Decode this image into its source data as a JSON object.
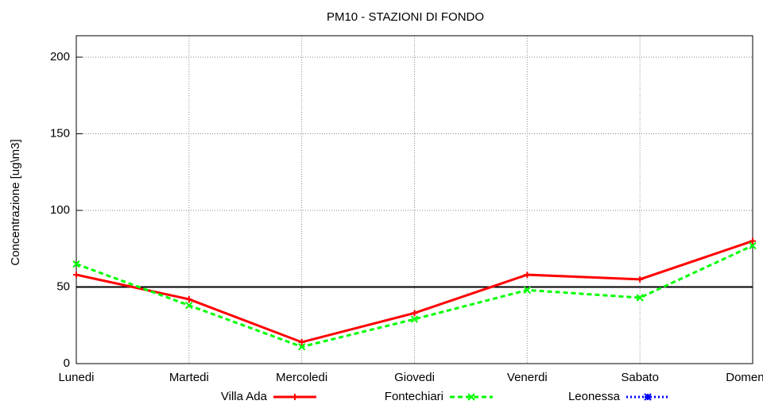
{
  "chart_data": {
    "type": "line",
    "title": "PM10 - STAZIONI DI FONDO",
    "y_label": "Concentrazione [ug\\m3]",
    "categories": [
      "Lunedi",
      "Martedi",
      "Mercoledi",
      "Giovedi",
      "Venerdi",
      "Sabato",
      "Domenica"
    ],
    "series": [
      {
        "name": "Villa Ada",
        "color": "#ff0000",
        "marker": "plus",
        "dash": "solid",
        "values": [
          58,
          42,
          14,
          33,
          58,
          55,
          80
        ]
      },
      {
        "name": "Fontechiari",
        "color": "#00ff00",
        "marker": "cross",
        "dash": "dashed",
        "values": [
          65,
          38,
          11,
          29,
          48,
          43,
          77
        ]
      },
      {
        "name": "Leonessa",
        "color": "#0000ff",
        "marker": "star",
        "dash": "dotted",
        "values": [
          null,
          null,
          null,
          null,
          null,
          null,
          null
        ]
      }
    ],
    "threshold": 50,
    "ylim": [
      0,
      214
    ],
    "yticks": [
      0,
      50,
      100,
      150,
      200
    ],
    "grid": true,
    "legend": "bottom"
  }
}
